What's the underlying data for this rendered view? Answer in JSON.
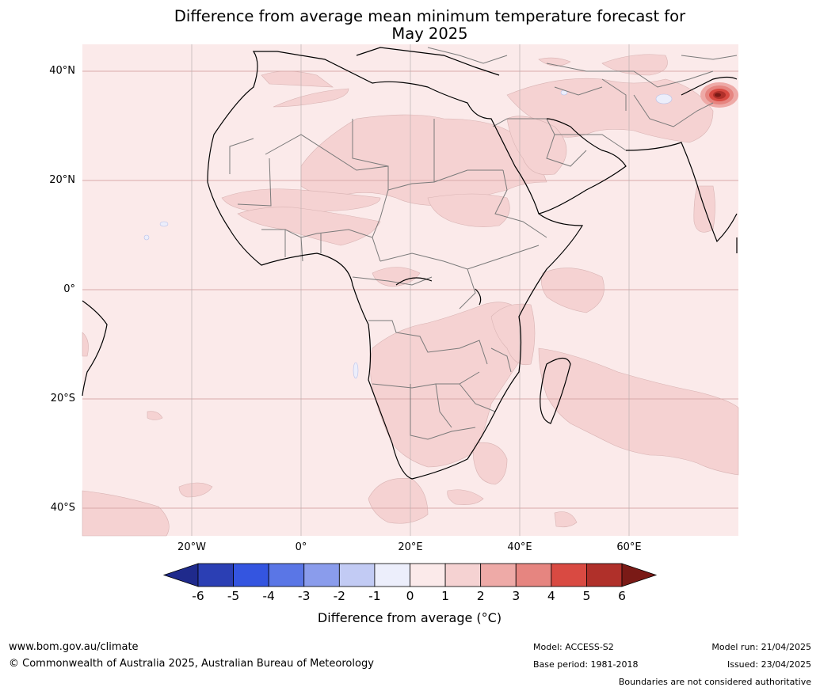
{
  "title_line1": "Difference from average mean minimum temperature forecast for",
  "title_line2": "May 2025",
  "lat_labels": [
    "40°N",
    "20°N",
    "0°",
    "20°S",
    "40°S"
  ],
  "lon_labels": [
    "20°W",
    "0°",
    "20°E",
    "40°E",
    "60°E"
  ],
  "colorbar": {
    "ticks": [
      "-6",
      "-5",
      "-4",
      "-3",
      "-2",
      "-1",
      "0",
      "1",
      "2",
      "3",
      "4",
      "5",
      "6"
    ],
    "colors": [
      "#1f2a8c",
      "#2b3fb4",
      "#3455e0",
      "#5a76e6",
      "#8a9cec",
      "#c2cbf4",
      "#eceefb",
      "#fbeaea",
      "#f5d2d2",
      "#eeaaa7",
      "#e68580",
      "#d94a42",
      "#b0302a",
      "#7a1a16"
    ],
    "label": "Difference from average (°C)"
  },
  "footer": {
    "url": "www.bom.gov.au/climate",
    "copyright": "© Commonwealth of Australia 2025, Australian Bureau of Meteorology",
    "model": "Model: ACCESS-S2",
    "base_period": "Base period: 1981-2018",
    "model_run": "Model run: 21/04/2025",
    "issued": "Issued: 23/04/2025",
    "disclaimer": "Boundaries are not considered authoritative"
  }
}
